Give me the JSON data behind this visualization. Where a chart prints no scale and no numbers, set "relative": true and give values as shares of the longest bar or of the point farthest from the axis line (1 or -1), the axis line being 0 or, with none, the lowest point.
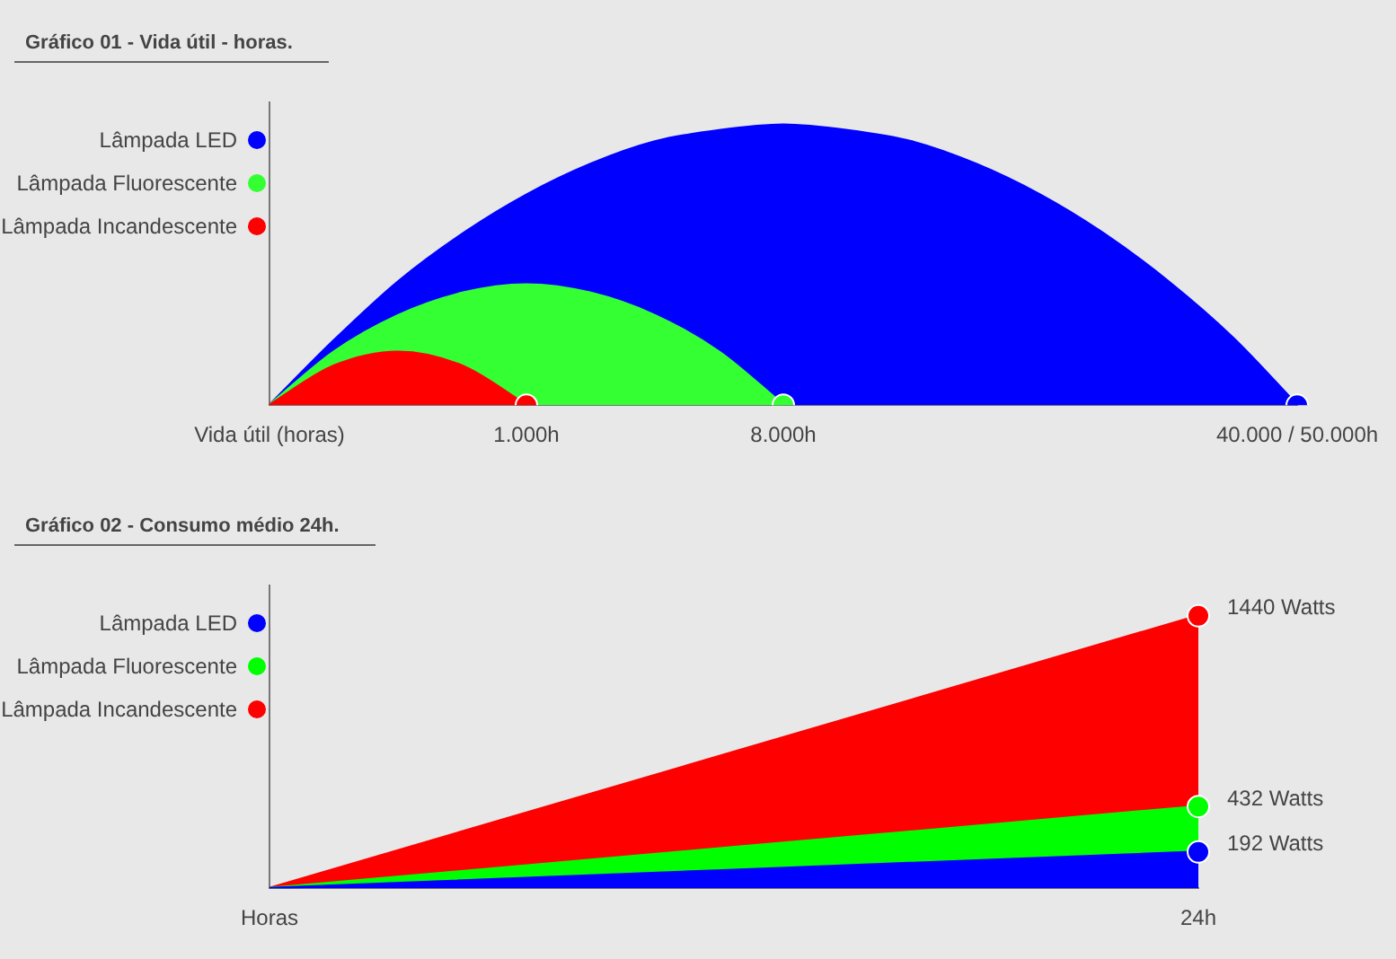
{
  "chart_data": [
    {
      "type": "area",
      "title": "Gráfico 01 - Vida útil - horas.",
      "relative": true,
      "legend": "left",
      "categories": [
        "Vida útil (horas)",
        null,
        null,
        null,
        "1.000h",
        null,
        null,
        null,
        "8.000h",
        null,
        null,
        null,
        null,
        null,
        null,
        null,
        "40.000 / 50.000h"
      ],
      "series": [
        {
          "name": "Lâmpada LED",
          "color": "#0000ff",
          "values": [
            0,
            0.23,
            0.44,
            0.61,
            0.75,
            0.86,
            0.94,
            0.98,
            1,
            0.98,
            0.94,
            0.86,
            0.75,
            0.61,
            0.44,
            0.24,
            0
          ]
        },
        {
          "name": "Lâmpada Fluorescente",
          "color": "#33ff33",
          "values": [
            0,
            0.19,
            0.32,
            0.4,
            0.43,
            0.4,
            0.32,
            0.19,
            0,
            null,
            null,
            null,
            null,
            null,
            null,
            null,
            null
          ]
        },
        {
          "name": "Lâmpada Incandescente",
          "color": "#ff0000",
          "values": [
            0,
            0.14,
            0.19,
            0.14,
            0,
            null,
            null,
            null,
            null,
            null,
            null,
            null,
            null,
            null,
            null,
            null,
            null
          ]
        }
      ]
    },
    {
      "type": "area",
      "title": "Gráfico 02 - Consumo médio 24h.",
      "legend": "left",
      "marker": "circle",
      "categories": [
        "Horas",
        "24h"
      ],
      "series": [
        {
          "name": "Lâmpada LED",
          "color": "#0000ff",
          "values": [
            0,
            192
          ],
          "value_labels": [
            null,
            "192 Watts"
          ]
        },
        {
          "name": "Lâmpada Fluorescente",
          "color": "#00ff00",
          "values": [
            0,
            432
          ],
          "value_labels": [
            null,
            "432 Watts"
          ]
        },
        {
          "name": "Lâmpada Incandescente",
          "color": "#ff0000",
          "values": [
            0,
            1440
          ],
          "value_labels": [
            null,
            "1440 Watts"
          ]
        }
      ]
    }
  ]
}
